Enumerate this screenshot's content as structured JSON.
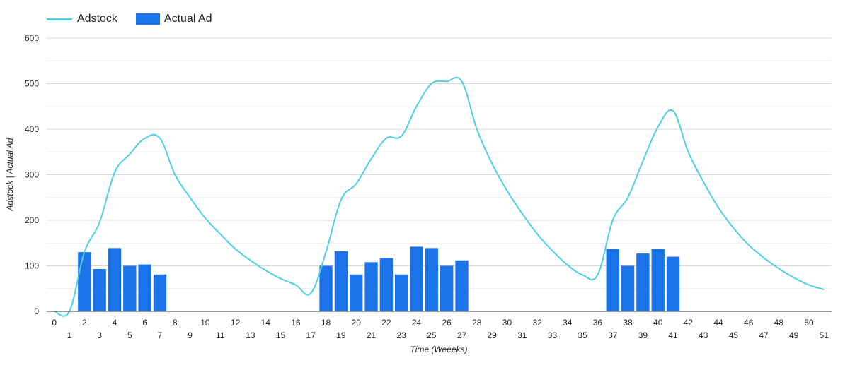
{
  "chart_data": {
    "type": "bar",
    "xlabel": "Time (Weeeks)",
    "ylabel": "Adstock | Actual Ad",
    "ylim": [
      0,
      600
    ],
    "yticks": [
      0,
      100,
      200,
      300,
      400,
      500,
      600
    ],
    "grid": true,
    "legend_position": "top-left",
    "x": [
      0,
      1,
      2,
      3,
      4,
      5,
      6,
      7,
      8,
      9,
      10,
      11,
      12,
      13,
      14,
      15,
      16,
      17,
      18,
      19,
      20,
      21,
      22,
      23,
      24,
      25,
      26,
      27,
      28,
      29,
      30,
      31,
      32,
      33,
      34,
      35,
      36,
      37,
      38,
      39,
      40,
      41,
      42,
      43,
      44,
      45,
      46,
      47,
      48,
      49,
      50,
      51
    ],
    "series": [
      {
        "name": "Adstock",
        "type": "line",
        "color": "#4dd0e1",
        "values": [
          0,
          0,
          130,
          195,
          305,
          345,
          380,
          380,
          300,
          250,
          205,
          170,
          137,
          112,
          90,
          72,
          58,
          40,
          130,
          245,
          280,
          335,
          380,
          385,
          450,
          500,
          505,
          505,
          400,
          325,
          265,
          215,
          170,
          133,
          102,
          80,
          80,
          200,
          250,
          330,
          405,
          440,
          350,
          285,
          228,
          183,
          146,
          118,
          94,
          74,
          58,
          48
        ]
      },
      {
        "name": "Actual Ad",
        "type": "bar",
        "color": "#1a73e8",
        "values": [
          0,
          0,
          130,
          93,
          139,
          100,
          103,
          81,
          0,
          0,
          0,
          0,
          0,
          0,
          0,
          0,
          0,
          0,
          100,
          132,
          81,
          108,
          117,
          81,
          142,
          139,
          100,
          112,
          0,
          0,
          0,
          0,
          0,
          0,
          0,
          0,
          0,
          137,
          100,
          127,
          137,
          120,
          0,
          0,
          0,
          0,
          0,
          0,
          0,
          0,
          0,
          0
        ]
      }
    ]
  }
}
